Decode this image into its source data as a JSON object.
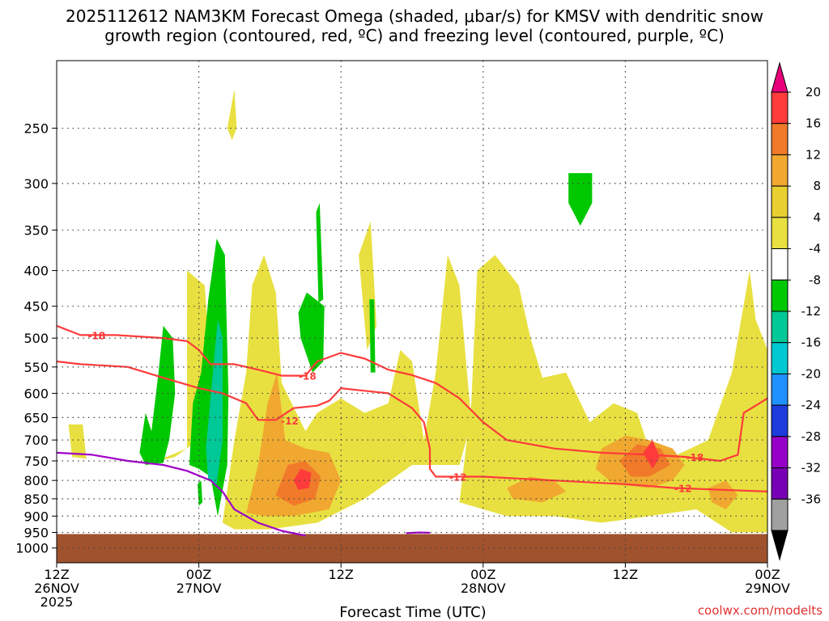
{
  "chart_data": {
    "type": "heatmap",
    "title_line1": "2025112612 NAM3KM Forecast Omega (shaded, μbar/s) for KMSV with dendritic snow",
    "title_line2": "growth region (contoured, red, ºC) and freezing level (contoured, purple, ºC)",
    "xlabel": "Forecast Time (UTC)",
    "ylabel": "",
    "x_unit": "hours since 2025-11-26 12Z",
    "xlim": [
      0,
      60
    ],
    "x_ticks": [
      {
        "hour": 0,
        "l1": "12Z",
        "l2": "26NOV",
        "l3": "2025"
      },
      {
        "hour": 12,
        "l1": "00Z",
        "l2": "27NOV",
        "l3": ""
      },
      {
        "hour": 24,
        "l1": "12Z",
        "l2": "",
        "l3": ""
      },
      {
        "hour": 36,
        "l1": "00Z",
        "l2": "28NOV",
        "l3": ""
      },
      {
        "hour": 48,
        "l1": "12Z",
        "l2": "",
        "l3": ""
      },
      {
        "hour": 60,
        "l1": "00Z",
        "l2": "29NOV",
        "l3": ""
      }
    ],
    "y_unit": "hPa",
    "ylim": [
      1050,
      200
    ],
    "y_ticks": [
      250,
      300,
      350,
      400,
      450,
      500,
      550,
      600,
      650,
      700,
      750,
      800,
      850,
      900,
      950,
      1000
    ],
    "colorbar": {
      "levels": [
        "20",
        "16",
        "12",
        "8",
        "4",
        "-4",
        "-8",
        "-12",
        "-16",
        "-20",
        "-24",
        "-28",
        "-32",
        "-36"
      ],
      "colors": [
        "#e8007a",
        "#ff3b3b",
        "#f07a2a",
        "#f0a830",
        "#e8d030",
        "#e8e040",
        "#ffffff",
        "#00c800",
        "#00c896",
        "#00c8d2",
        "#1e90ff",
        "#1e3cdc",
        "#9600c8",
        "#7800b4",
        "#a0a0a0",
        "#000000"
      ]
    },
    "shaded_regions": [
      {
        "name": "positive omega 4-8",
        "color": "#e8e040",
        "points": [
          [
            8,
            755
          ],
          [
            10,
            740
          ],
          [
            12,
            700
          ],
          [
            13,
            560
          ],
          [
            12.5,
            420
          ],
          [
            11,
            400
          ],
          [
            11,
            720
          ]
        ]
      },
      {
        "name": "positive omega 4-8",
        "color": "#e8e040",
        "points": [
          [
            14,
            920
          ],
          [
            15,
            700
          ],
          [
            16,
            560
          ],
          [
            16.5,
            420
          ],
          [
            17.5,
            380
          ],
          [
            18.5,
            430
          ],
          [
            19,
            580
          ],
          [
            21,
            680
          ],
          [
            22,
            640
          ],
          [
            24,
            610
          ],
          [
            26,
            640
          ],
          [
            28,
            620
          ],
          [
            29,
            520
          ],
          [
            30,
            540
          ],
          [
            31,
            700
          ],
          [
            32,
            560
          ],
          [
            33,
            380
          ],
          [
            34,
            420
          ],
          [
            35,
            660
          ],
          [
            34,
            760
          ],
          [
            30,
            760
          ],
          [
            26,
            850
          ],
          [
            22,
            920
          ],
          [
            18,
            940
          ],
          [
            15,
            940
          ]
        ]
      },
      {
        "name": "positive omega 4-8",
        "color": "#e8e040",
        "points": [
          [
            34,
            860
          ],
          [
            35,
            620
          ],
          [
            35.5,
            400
          ],
          [
            37,
            380
          ],
          [
            39,
            420
          ],
          [
            40,
            500
          ],
          [
            41,
            570
          ],
          [
            43,
            560
          ],
          [
            45,
            660
          ],
          [
            47,
            620
          ],
          [
            49,
            640
          ],
          [
            50,
            720
          ],
          [
            52,
            740
          ],
          [
            55,
            700
          ],
          [
            57,
            560
          ],
          [
            58.5,
            400
          ],
          [
            59,
            470
          ],
          [
            60,
            520
          ],
          [
            60,
            950
          ],
          [
            57,
            950
          ],
          [
            54,
            880
          ],
          [
            50,
            900
          ],
          [
            46,
            920
          ],
          [
            42,
            900
          ],
          [
            38,
            900
          ]
        ]
      },
      {
        "name": "positive omega 4-8",
        "color": "#e8e040",
        "points": [
          [
            1,
            665
          ],
          [
            2.2,
            665
          ],
          [
            2.5,
            745
          ],
          [
            1.3,
            740
          ]
        ]
      },
      {
        "name": "positive omega 4-8",
        "color": "#e8e040",
        "points": [
          [
            25.5,
            380
          ],
          [
            26.5,
            340
          ],
          [
            27,
            480
          ],
          [
            26.2,
            520
          ]
        ]
      },
      {
        "name": "positive omega 4-8",
        "color": "#e8e040",
        "points": [
          [
            14.4,
            250
          ],
          [
            15,
            220
          ],
          [
            15.2,
            250
          ],
          [
            14.8,
            260
          ]
        ]
      },
      {
        "name": "positive omega 8-12",
        "color": "#f0a830",
        "points": [
          [
            16,
            890
          ],
          [
            17,
            760
          ],
          [
            17.8,
            620
          ],
          [
            18.6,
            560
          ],
          [
            19.3,
            700
          ],
          [
            21,
            720
          ],
          [
            23,
            730
          ],
          [
            24,
            800
          ],
          [
            23,
            880
          ],
          [
            20,
            900
          ],
          [
            17.5,
            900
          ]
        ]
      },
      {
        "name": "positive omega 8-12",
        "color": "#f0a830",
        "points": [
          [
            46,
            720
          ],
          [
            48,
            690
          ],
          [
            50,
            700
          ],
          [
            52,
            720
          ],
          [
            53,
            760
          ],
          [
            52,
            800
          ],
          [
            50,
            820
          ],
          [
            47,
            810
          ],
          [
            45.5,
            770
          ]
        ]
      },
      {
        "name": "positive omega 8-12",
        "color": "#f0a830",
        "points": [
          [
            38,
            820
          ],
          [
            40,
            790
          ],
          [
            42,
            800
          ],
          [
            43,
            830
          ],
          [
            41,
            860
          ],
          [
            38.5,
            850
          ]
        ]
      },
      {
        "name": "positive omega 8-12",
        "color": "#f0a830",
        "points": [
          [
            55,
            820
          ],
          [
            56.5,
            800
          ],
          [
            57.5,
            840
          ],
          [
            56.5,
            880
          ],
          [
            55.3,
            860
          ]
        ]
      },
      {
        "name": "positive omega 12-16",
        "color": "#f07a2a",
        "points": [
          [
            18.5,
            840
          ],
          [
            19.5,
            760
          ],
          [
            21,
            750
          ],
          [
            22.3,
            790
          ],
          [
            21.8,
            850
          ],
          [
            20,
            870
          ]
        ]
      },
      {
        "name": "positive omega 12-16",
        "color": "#f07a2a",
        "points": [
          [
            47.5,
            750
          ],
          [
            49,
            710
          ],
          [
            51,
            720
          ],
          [
            51.8,
            760
          ],
          [
            50,
            790
          ],
          [
            48.5,
            790
          ]
        ]
      },
      {
        "name": "positive omega 16-20",
        "color": "#ff3b3b",
        "points": [
          [
            20,
            800
          ],
          [
            20.6,
            770
          ],
          [
            21.5,
            780
          ],
          [
            21.3,
            820
          ],
          [
            20.4,
            825
          ]
        ]
      },
      {
        "name": "positive omega 16-20",
        "color": "#ff3b3b",
        "points": [
          [
            49.5,
            730
          ],
          [
            50.3,
            700
          ],
          [
            50.9,
            740
          ],
          [
            50.3,
            770
          ]
        ]
      },
      {
        "name": "negative omega -4 to -8",
        "color": "#00c800",
        "points": [
          [
            7,
            730
          ],
          [
            7.5,
            640
          ],
          [
            8,
            680
          ],
          [
            8.6,
            560
          ],
          [
            9,
            480
          ],
          [
            9.8,
            500
          ],
          [
            10,
            600
          ],
          [
            9.5,
            700
          ],
          [
            9,
            755
          ],
          [
            7.5,
            760
          ]
        ]
      },
      {
        "name": "negative omega -4 to -8",
        "color": "#00c800",
        "points": [
          [
            11.2,
            760
          ],
          [
            11.5,
            620
          ],
          [
            12.2,
            560
          ],
          [
            12.8,
            440
          ],
          [
            13.5,
            360
          ],
          [
            14.2,
            380
          ],
          [
            14.5,
            600
          ],
          [
            14.4,
            760
          ],
          [
            13.6,
            900
          ],
          [
            13,
            790
          ],
          [
            12,
            770
          ]
        ]
      },
      {
        "name": "negative omega -4 to -8",
        "color": "#00c800",
        "points": [
          [
            20.4,
            460
          ],
          [
            21.1,
            430
          ],
          [
            22.6,
            450
          ],
          [
            22.5,
            540
          ],
          [
            21.6,
            560
          ],
          [
            20.6,
            500
          ]
        ]
      },
      {
        "name": "negative omega -4 to -8",
        "color": "#00c800",
        "points": [
          [
            21.9,
            330
          ],
          [
            22.2,
            320
          ],
          [
            22.5,
            440
          ],
          [
            22.1,
            445
          ]
        ]
      },
      {
        "name": "negative omega -4 to -8",
        "color": "#00c800",
        "points": [
          [
            26.4,
            440
          ],
          [
            26.8,
            440
          ],
          [
            26.9,
            560
          ],
          [
            26.5,
            560
          ]
        ]
      },
      {
        "name": "negative omega -4 to -8",
        "color": "#00c800",
        "points": [
          [
            43.2,
            290
          ],
          [
            45.2,
            290
          ],
          [
            45.2,
            320
          ],
          [
            44.2,
            345
          ],
          [
            43.2,
            320
          ]
        ]
      },
      {
        "name": "negative omega -4 to -8",
        "color": "#00c800",
        "points": [
          [
            11.9,
            810
          ],
          [
            12.2,
            800
          ],
          [
            12.3,
            860
          ],
          [
            12,
            870
          ]
        ]
      },
      {
        "name": "negative omega -8 to -12",
        "color": "#00c896",
        "points": [
          [
            12.6,
            720
          ],
          [
            13.1,
            580
          ],
          [
            13.6,
            470
          ],
          [
            14,
            500
          ],
          [
            14,
            700
          ],
          [
            13.5,
            810
          ],
          [
            12.8,
            800
          ]
        ]
      }
    ],
    "contours": [
      {
        "name": "-18 C dendritic growth isotherm",
        "label": "-18",
        "color": "#ff3b3b",
        "points": [
          [
            0,
            480
          ],
          [
            2,
            495
          ],
          [
            5,
            495
          ],
          [
            9,
            500
          ],
          [
            11,
            505
          ],
          [
            12,
            520
          ],
          [
            13,
            545
          ],
          [
            15,
            545
          ],
          [
            17,
            555
          ],
          [
            19,
            566
          ],
          [
            21,
            566
          ],
          [
            22,
            540
          ],
          [
            24,
            525
          ],
          [
            26,
            535
          ],
          [
            28,
            555
          ],
          [
            30,
            565
          ],
          [
            32,
            580
          ],
          [
            34,
            610
          ],
          [
            36,
            660
          ],
          [
            38,
            700
          ],
          [
            42,
            720
          ],
          [
            46,
            730
          ],
          [
            50,
            735
          ],
          [
            53,
            740
          ],
          [
            56,
            750
          ],
          [
            57.5,
            735
          ],
          [
            58,
            640
          ],
          [
            59,
            625
          ],
          [
            60,
            610
          ]
        ],
        "label_positions": [
          [
            2.5,
            495
          ],
          [
            20.3,
            566
          ],
          [
            53,
            740
          ]
        ]
      },
      {
        "name": "-12 C dendritic growth isotherm",
        "label": "-12",
        "color": "#ff3b3b",
        "points": [
          [
            0,
            540
          ],
          [
            2,
            545
          ],
          [
            6,
            550
          ],
          [
            9,
            570
          ],
          [
            12,
            590
          ],
          [
            14,
            600
          ],
          [
            16,
            620
          ],
          [
            17,
            655
          ],
          [
            18.5,
            655
          ],
          [
            20,
            630
          ],
          [
            22,
            625
          ],
          [
            23,
            615
          ],
          [
            24,
            590
          ],
          [
            26,
            595
          ],
          [
            28,
            600
          ],
          [
            30,
            630
          ],
          [
            31,
            660
          ],
          [
            31.5,
            720
          ],
          [
            31.5,
            770
          ],
          [
            32,
            790
          ],
          [
            36,
            790
          ],
          [
            42,
            800
          ],
          [
            48,
            810
          ],
          [
            52,
            820
          ],
          [
            56,
            825
          ],
          [
            60,
            830
          ]
        ],
        "label_positions": [
          [
            18.8,
            656
          ],
          [
            33,
            790
          ],
          [
            52,
            820
          ]
        ]
      },
      {
        "name": "0 C freezing level",
        "label": "0",
        "color": "#a000c8",
        "points": [
          [
            0,
            730
          ],
          [
            3,
            735
          ],
          [
            6,
            750
          ],
          [
            9,
            760
          ],
          [
            11,
            775
          ],
          [
            13,
            800
          ],
          [
            14,
            830
          ],
          [
            15,
            880
          ],
          [
            17,
            920
          ],
          [
            19,
            945
          ],
          [
            21,
            960
          ]
        ],
        "label_positions": []
      },
      {
        "name": "0 C freezing level segment",
        "label": "0",
        "color": "#a000c8",
        "points": [
          [
            29.5,
            952
          ],
          [
            30.6,
            950
          ],
          [
            31.5,
            951
          ]
        ],
        "label_positions": []
      }
    ],
    "ground": {
      "top_hPa": 955,
      "color": "#a0522d"
    }
  },
  "credit": "coolwx.com/modelts"
}
